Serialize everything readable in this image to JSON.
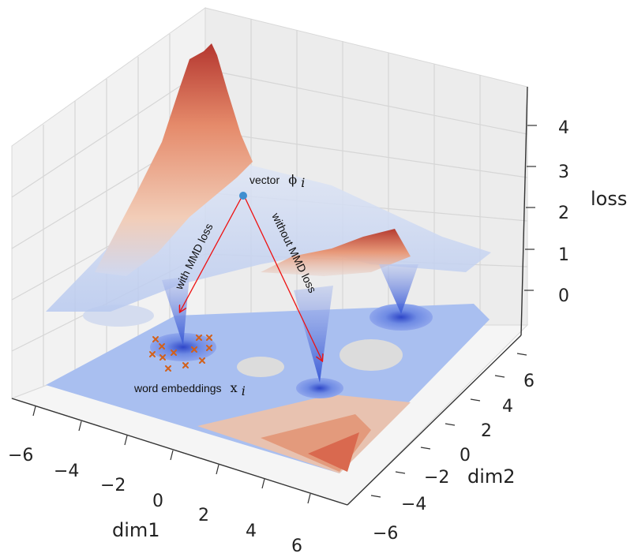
{
  "figure": {
    "type": "3d-surface",
    "axes": {
      "x": {
        "label": "dim1",
        "ticks": [
          "−6",
          "−4",
          "−2",
          "0",
          "2",
          "4",
          "6"
        ]
      },
      "y": {
        "label": "dim2",
        "ticks": [
          "−6",
          "−4",
          "−2",
          "0",
          "2",
          "4",
          "6"
        ]
      },
      "z": {
        "label": "loss",
        "ticks": [
          "0",
          "1",
          "2",
          "3",
          "4"
        ]
      }
    },
    "annotations": {
      "vector_label": "vector",
      "vector_symbol": "ϕ",
      "vector_sub": "i",
      "arrow_left_label": "with MMD loss",
      "arrow_right_label": "without MMD loss",
      "embeddings_label": "word embeddings",
      "embeddings_symbol": "x",
      "embeddings_sub": "i"
    },
    "colors": {
      "arrow": "#ee1111",
      "vector_point": "#3f8fd0",
      "embedding_marker": "#d2601a",
      "surface_high": "#b4362f",
      "surface_low": "#3b5bd6"
    }
  }
}
